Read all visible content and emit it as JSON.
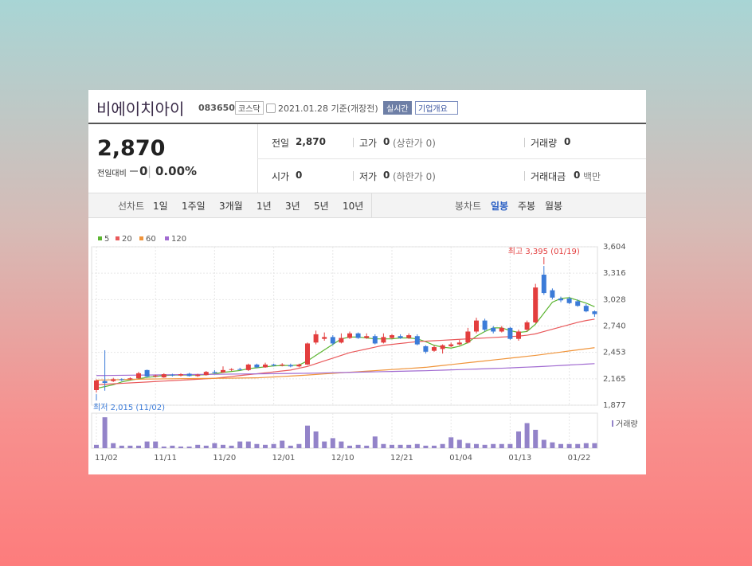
{
  "header": {
    "name": "비에이치아이",
    "code": "083650",
    "market": "코스닥",
    "date": "2021.01.28 기준(개장전)",
    "realtime": "실시간",
    "company": "기업개요"
  },
  "quote": {
    "price": "2,870",
    "change_label": "전일대비",
    "change": "0",
    "change_pct": "0.00%",
    "fields": [
      {
        "label": "전일",
        "value": "2,870"
      },
      {
        "label": "고가",
        "value": "0",
        "extra": "(상한가 0)"
      },
      {
        "label": "거래량",
        "value": "0"
      },
      {
        "label": "시가",
        "value": "0"
      },
      {
        "label": "저가",
        "value": "0",
        "extra": "(하한가 0)"
      },
      {
        "label": "거래대금",
        "value": "0",
        "extra": "백만"
      }
    ]
  },
  "tabs": {
    "line_label": "선차트",
    "periods": [
      "1일",
      "1주일",
      "3개월",
      "1년",
      "3년",
      "5년",
      "10년"
    ],
    "candle_label": "봉차트",
    "candle_options": [
      "일봉",
      "주봉",
      "월봉"
    ]
  },
  "chart_data": {
    "type": "candlestick",
    "categories": [
      "11/02",
      null,
      null,
      null,
      null,
      null,
      null,
      "11/11",
      null,
      null,
      null,
      null,
      null,
      null,
      "11/20",
      null,
      null,
      null,
      null,
      null,
      null,
      "12/01",
      null,
      null,
      null,
      null,
      null,
      null,
      "12/10",
      null,
      null,
      null,
      null,
      null,
      null,
      "12/21",
      null,
      null,
      null,
      null,
      null,
      null,
      "01/04",
      null,
      null,
      null,
      null,
      null,
      null,
      "01/13",
      null,
      null,
      null,
      null,
      null,
      null,
      "01/22",
      null,
      null,
      null
    ],
    "open": [
      2042,
      2140,
      2140,
      2160,
      2160,
      2170,
      2260,
      2190,
      2180,
      2210,
      2200,
      2220,
      2195,
      2205,
      2240,
      2235,
      2265,
      2270,
      2260,
      2320,
      2290,
      2320,
      2310,
      2315,
      2300,
      2320,
      2560,
      2600,
      2620,
      2560,
      2610,
      2660,
      2610,
      2630,
      2560,
      2610,
      2630,
      2610,
      2630,
      2520,
      2470,
      2490,
      2520,
      2540,
      2560,
      2680,
      2800,
      2720,
      2680,
      2720,
      2600,
      2700,
      2780,
      3300,
      3130,
      3040,
      3040,
      3010,
      2960,
      2900
    ],
    "high": [
      2160,
      2476,
      2175,
      2170,
      2180,
      2240,
      2265,
      2210,
      2225,
      2220,
      2225,
      2230,
      2220,
      2250,
      2260,
      2300,
      2280,
      2285,
      2330,
      2330,
      2340,
      2330,
      2335,
      2330,
      2330,
      2560,
      2690,
      2670,
      2640,
      2660,
      2680,
      2670,
      2660,
      2650,
      2660,
      2650,
      2650,
      2660,
      2650,
      2530,
      2530,
      2540,
      2560,
      2590,
      2720,
      2830,
      2820,
      2740,
      2740,
      2730,
      2700,
      2800,
      3200,
      3395,
      3150,
      3060,
      3060,
      3030,
      2980,
      2910
    ],
    "low": [
      2015,
      2035,
      2130,
      2140,
      2150,
      2165,
      2180,
      2180,
      2175,
      2190,
      2190,
      2190,
      2185,
      2200,
      2220,
      2230,
      2250,
      2255,
      2250,
      2280,
      2285,
      2300,
      2300,
      2290,
      2290,
      2315,
      2540,
      2580,
      2530,
      2550,
      2600,
      2600,
      2600,
      2540,
      2550,
      2600,
      2600,
      2600,
      2530,
      2440,
      2460,
      2440,
      2510,
      2530,
      2550,
      2660,
      2680,
      2660,
      2670,
      2590,
      2580,
      2680,
      2770,
      3080,
      3030,
      3000,
      2980,
      2950,
      2890,
      2840
    ],
    "close": [
      2146,
      2120,
      2160,
      2150,
      2170,
      2225,
      2190,
      2200,
      2215,
      2200,
      2215,
      2195,
      2210,
      2240,
      2230,
      2260,
      2270,
      2265,
      2320,
      2290,
      2320,
      2310,
      2320,
      2300,
      2320,
      2550,
      2650,
      2620,
      2550,
      2610,
      2660,
      2610,
      2630,
      2550,
      2620,
      2640,
      2610,
      2640,
      2540,
      2460,
      2510,
      2530,
      2540,
      2560,
      2680,
      2800,
      2700,
      2680,
      2720,
      2600,
      2680,
      2780,
      3160,
      3100,
      3050,
      3020,
      2990,
      2960,
      2900,
      2870
    ],
    "up_color": "#e33e3e",
    "down_color": "#3b7bd8",
    "series": [
      {
        "name": "5",
        "color": "#5cb531",
        "values": [
          2060,
          2080,
          2100,
          2130,
          2150,
          2165,
          2180,
          2190,
          2200,
          2205,
          2205,
          2205,
          2205,
          2210,
          2220,
          2235,
          2245,
          2255,
          2275,
          2285,
          2295,
          2305,
          2310,
          2310,
          2315,
          2360,
          2420,
          2480,
          2540,
          2600,
          2620,
          2620,
          2610,
          2600,
          2600,
          2600,
          2610,
          2610,
          2600,
          2570,
          2530,
          2510,
          2500,
          2520,
          2560,
          2630,
          2680,
          2720,
          2720,
          2690,
          2670,
          2680,
          2760,
          2880,
          3000,
          3040,
          3050,
          3020,
          2990,
          2950
        ]
      },
      {
        "name": "20",
        "color": "#e9595b",
        "values": [
          2100,
          2105,
          2110,
          2115,
          2120,
          2125,
          2130,
          2135,
          2140,
          2145,
          2150,
          2155,
          2160,
          2165,
          2170,
          2180,
          2190,
          2200,
          2210,
          2220,
          2230,
          2240,
          2250,
          2260,
          2280,
          2300,
          2330,
          2360,
          2390,
          2420,
          2450,
          2470,
          2490,
          2510,
          2530,
          2540,
          2550,
          2560,
          2570,
          2575,
          2580,
          2585,
          2590,
          2595,
          2600,
          2605,
          2610,
          2615,
          2620,
          2625,
          2630,
          2640,
          2655,
          2680,
          2705,
          2730,
          2755,
          2780,
          2800,
          2815
        ]
      },
      {
        "name": "60",
        "color": "#f0943a",
        "values": [
          2150,
          2152,
          2154,
          2156,
          2158,
          2160,
          2162,
          2163,
          2164,
          2165,
          2166,
          2167,
          2168,
          2169,
          2170,
          2171,
          2172,
          2173,
          2174,
          2175,
          2180,
          2185,
          2190,
          2195,
          2200,
          2206,
          2212,
          2218,
          2224,
          2230,
          2236,
          2242,
          2248,
          2254,
          2260,
          2266,
          2272,
          2278,
          2284,
          2290,
          2300,
          2310,
          2320,
          2330,
          2340,
          2350,
          2360,
          2370,
          2380,
          2390,
          2400,
          2410,
          2420,
          2432,
          2444,
          2456,
          2468,
          2480,
          2492,
          2504
        ]
      },
      {
        "name": "120",
        "color": "#a16bd1",
        "values": [
          2200,
          2201,
          2202,
          2203,
          2204,
          2205,
          2206,
          2207,
          2208,
          2209,
          2210,
          2211,
          2212,
          2213,
          2214,
          2215,
          2216,
          2217,
          2218,
          2219,
          2220,
          2221,
          2222,
          2223,
          2224,
          2225,
          2227,
          2229,
          2231,
          2233,
          2235,
          2237,
          2239,
          2241,
          2243,
          2245,
          2247,
          2249,
          2251,
          2253,
          2256,
          2259,
          2262,
          2265,
          2268,
          2271,
          2274,
          2277,
          2280,
          2284,
          2288,
          2292,
          2296,
          2300,
          2305,
          2310,
          2315,
          2320,
          2325,
          2330
        ]
      }
    ],
    "volume": {
      "name": "거래량",
      "color": "#9383c9",
      "ylim": [
        0,
        40
      ],
      "values": [
        4,
        37,
        6,
        3,
        3,
        3,
        8,
        8,
        2,
        3,
        2,
        2,
        4,
        3,
        6,
        4,
        3,
        8,
        8,
        5,
        4,
        5,
        9,
        3,
        5,
        27,
        20,
        8,
        12,
        8,
        3,
        4,
        3,
        14,
        5,
        4,
        4,
        4,
        5,
        3,
        3,
        5,
        13,
        10,
        6,
        5,
        4,
        5,
        5,
        5,
        20,
        30,
        22,
        10,
        7,
        5,
        5,
        5,
        6,
        6
      ]
    },
    "ylim": [
      1877,
      3604
    ],
    "yticks": [
      {
        "value": 1877,
        "label": "1,877"
      },
      {
        "value": 2165,
        "label": "2,165"
      },
      {
        "value": 2453,
        "label": "2,453"
      },
      {
        "value": 2740,
        "label": "2,740"
      },
      {
        "value": 3028,
        "label": "3,028"
      },
      {
        "value": 3316,
        "label": "3,316"
      },
      {
        "value": 3604,
        "label": "3,604"
      }
    ],
    "annotations": {
      "high": "최고 3,395 (01/19)",
      "low": "최저 2,015 (11/02)"
    },
    "grid": true
  }
}
